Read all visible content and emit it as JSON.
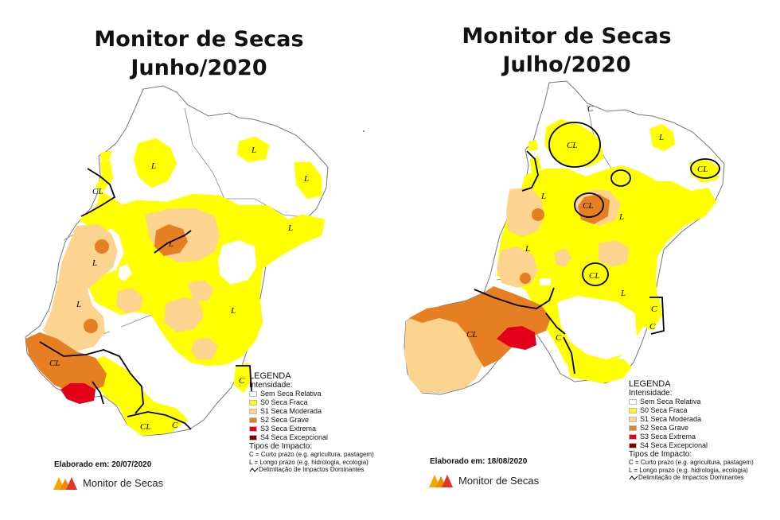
{
  "maps": [
    {
      "title_line1": "Monitor de Secas",
      "title_line2": "Junho/2020",
      "elaborado": "Elaborado em: 20/07/2020",
      "region_labels": [
        "L",
        "L",
        "L",
        "L",
        "L",
        "L",
        "L",
        "L",
        "CL",
        "CL",
        "CL",
        "C",
        "C"
      ]
    },
    {
      "title_line1": "Monitor de Secas",
      "title_line2": "Julho/2020",
      "elaborado": "Elaborado em: 18/08/2020",
      "region_labels": [
        "C",
        "CL",
        "L",
        "CL",
        "CL",
        "L",
        "L",
        "L",
        "CL",
        "L",
        "CL",
        "C",
        "C",
        "C"
      ]
    }
  ],
  "legend": {
    "title": "LEGENDA",
    "intensity_label": "Intensidade:",
    "categories": [
      {
        "label": "Sem Seca Relativa",
        "color": "#ffffff"
      },
      {
        "label": "S0 Seca Fraca",
        "color": "#ffff00"
      },
      {
        "label": "S1 Seca Moderada",
        "color": "#fcd38f"
      },
      {
        "label": "S2 Seca Grave",
        "color": "#e67e22"
      },
      {
        "label": "S3 Seca Extrema",
        "color": "#e2001a"
      },
      {
        "label": "S4 Seca Excepcional",
        "color": "#7b0000"
      }
    ],
    "impact_title": "Tipos de Impacto:",
    "impact_c": "C = Curto prazo (e.g. agricultura, pastagem)",
    "impact_l": "L = Longo prazo (e.g. hidrologia, ecologia)",
    "delimitation": "Delimitação de Impactos Dominantes"
  },
  "brand": {
    "name": "Monitor de Secas",
    "logo_colors": [
      "#f6a800",
      "#e6332a"
    ]
  }
}
